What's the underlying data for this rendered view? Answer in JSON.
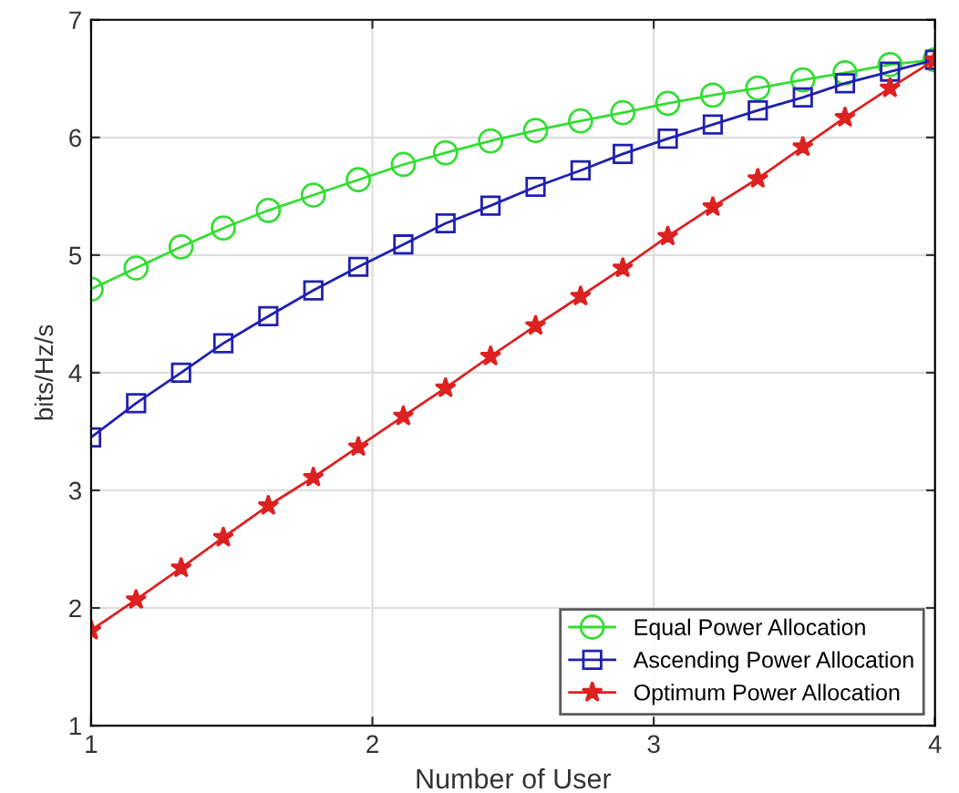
{
  "chart_data": {
    "type": "line",
    "xlabel": "Number of User",
    "ylabel": "bits/Hz/s",
    "x": [
      1,
      1.16,
      1.32,
      1.47,
      1.63,
      1.79,
      1.95,
      2.11,
      2.26,
      2.42,
      2.58,
      2.74,
      2.89,
      3.05,
      3.21,
      3.37,
      3.53,
      3.68,
      3.84,
      4
    ],
    "series": [
      {
        "name": "Equal Power Allocation",
        "color": "#33dd33",
        "marker": "circle",
        "values": [
          4.71,
          4.89,
          5.07,
          5.23,
          5.38,
          5.51,
          5.64,
          5.77,
          5.87,
          5.97,
          6.06,
          6.14,
          6.21,
          6.29,
          6.36,
          6.42,
          6.49,
          6.55,
          6.62,
          6.66
        ]
      },
      {
        "name": "Ascending Power Allocation",
        "color": "#2020b0",
        "marker": "square",
        "values": [
          3.45,
          3.74,
          4.0,
          4.25,
          4.48,
          4.7,
          4.9,
          5.09,
          5.27,
          5.42,
          5.58,
          5.72,
          5.86,
          5.99,
          6.11,
          6.23,
          6.34,
          6.46,
          6.56,
          6.66
        ]
      },
      {
        "name": "Optimum Power Allocation",
        "color": "#dd2020",
        "marker": "star",
        "values": [
          1.81,
          2.07,
          2.34,
          2.6,
          2.87,
          3.11,
          3.37,
          3.63,
          3.87,
          4.14,
          4.4,
          4.65,
          4.89,
          5.16,
          5.41,
          5.65,
          5.92,
          6.17,
          6.42,
          6.66
        ]
      }
    ],
    "xlim": [
      1,
      4
    ],
    "xticks": [
      1,
      2,
      3,
      4
    ],
    "ylim": [
      1,
      7
    ],
    "yticks": [
      1,
      2,
      3,
      4,
      5,
      6,
      7
    ],
    "grid": true,
    "legend": "bottom right"
  }
}
